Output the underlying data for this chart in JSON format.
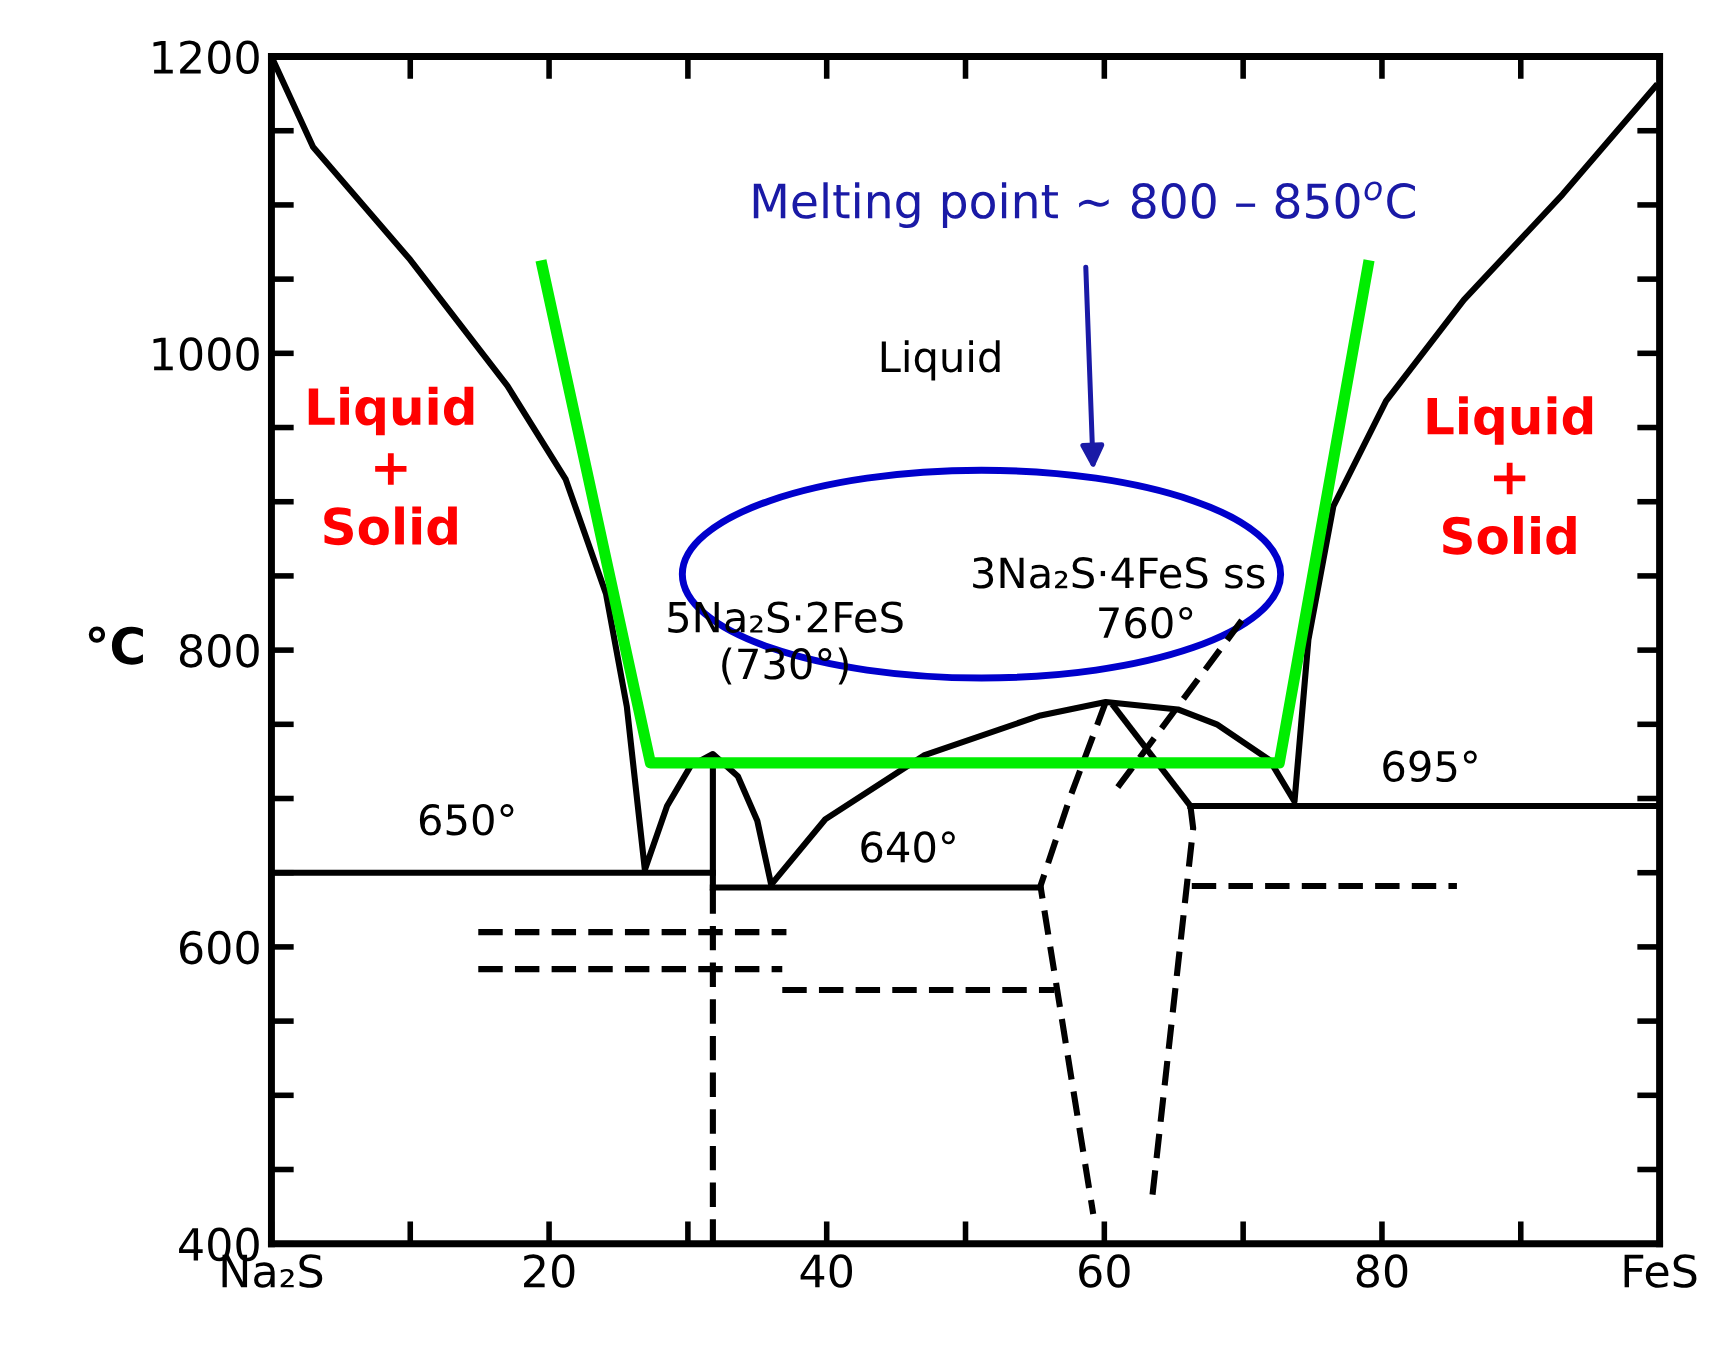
{
  "chart_data": {
    "type": "line",
    "ylabel": "°C",
    "xlim": [
      0,
      100
    ],
    "ylim": [
      400,
      1200
    ],
    "xticks": [
      {
        "value": 0,
        "label": "Na₂S"
      },
      {
        "value": 10,
        "label": null
      },
      20,
      {
        "value": 30,
        "label": null
      },
      40,
      {
        "value": 50,
        "label": null
      },
      60,
      {
        "value": 70,
        "label": null
      },
      80,
      {
        "value": 90,
        "label": null
      },
      {
        "value": 100,
        "label": "FeS"
      }
    ],
    "yticks": [
      400,
      {
        "value": 450,
        "label": null
      },
      {
        "value": 500,
        "label": null
      },
      {
        "value": 550,
        "label": null
      },
      600,
      {
        "value": 650,
        "label": null
      },
      {
        "value": 700,
        "label": null
      },
      {
        "value": 750,
        "label": null
      },
      800,
      {
        "value": 850,
        "label": null
      },
      {
        "value": 900,
        "label": null
      },
      {
        "value": 950,
        "label": null
      },
      1000,
      {
        "value": 1050,
        "label": null
      },
      {
        "value": 1100,
        "label": null
      },
      {
        "value": 1150,
        "label": null
      },
      1200
    ],
    "grid": false,
    "marker": "none",
    "series": [
      {
        "color": "#000000",
        "line_style": "solid",
        "x": [
          0,
          3,
          10,
          17,
          21.2,
          24.1,
          25.6,
          26.9,
          28.5,
          30.2,
          31.8,
          33.6,
          35,
          36,
          39.9,
          47,
          55.4,
          60.1,
          65.3,
          68.1,
          71.9,
          73.7,
          74.7,
          76.5,
          80.3,
          85.9,
          93,
          99.7
        ],
        "values": [
          1200,
          1139,
          1063,
          978,
          915,
          838,
          762,
          652,
          695,
          722,
          730,
          715,
          685,
          642,
          686,
          729,
          756,
          765,
          760,
          750,
          726,
          698,
          807,
          897,
          968,
          1036,
          1107,
          1180
        ]
      },
      {
        "color": "#000000",
        "line_style": "solid",
        "x": [
          0,
          31.8
        ],
        "values": [
          650,
          650
        ]
      },
      {
        "color": "#000000",
        "line_style": "solid",
        "x": [
          31.8,
          31.8
        ],
        "values": [
          640,
          728
        ]
      },
      {
        "color": "#000000",
        "line_style": "solid",
        "x": [
          31.8,
          55.4
        ],
        "values": [
          640,
          640
        ]
      },
      {
        "color": "#000000",
        "line_style": "dashed",
        "x": [
          31.8,
          31.8
        ],
        "values": [
          400,
          640
        ]
      },
      {
        "color": "#000000",
        "line_style": "solid",
        "x": [
          66.2,
          100
        ],
        "values": [
          695,
          695
        ]
      },
      {
        "color": "#000000",
        "line_style": "solid",
        "x": [
          60.7,
          66.2
        ],
        "values": [
          762,
          695
        ]
      },
      {
        "color": "#000000",
        "line_style": "dashed",
        "x": [
          66.2,
          66.4,
          63.4
        ],
        "values": [
          695,
          680,
          427
        ]
      },
      {
        "color": "#000000",
        "line_style": "dashed",
        "x": [
          60.1,
          57.5,
          55.4,
          59.2
        ],
        "values": [
          765,
          700,
          641,
          420
        ]
      },
      {
        "color": "#000000",
        "line_style": "dashed",
        "x": [
          69.9,
          60.6
        ],
        "values": [
          820,
          703
        ]
      },
      {
        "color": "#000000",
        "line_style": "dashed",
        "x": [
          14.9,
          37.1
        ],
        "values": [
          610,
          610
        ]
      },
      {
        "color": "#000000",
        "line_style": "dashed",
        "x": [
          14.9,
          36.8
        ],
        "values": [
          585,
          585
        ]
      },
      {
        "color": "#000000",
        "line_style": "dashed",
        "x": [
          36.8,
          56.4
        ],
        "values": [
          571,
          571
        ]
      },
      {
        "color": "#000000",
        "line_style": "dashed",
        "x": [
          66.3,
          85.4
        ],
        "values": [
          641,
          641
        ]
      },
      {
        "color": "#00ee00",
        "line_style": "solid",
        "x": [
          19.5,
          27.3,
          72.6,
          79
        ],
        "values": [
          1059,
          724,
          724,
          1059
        ]
      }
    ],
    "annotations": [
      "Melting point ~ 800 – 850$^{o}$C",
      "Liquid",
      "Liquid\n+\nSolid",
      "Liquid\n+\nSolid",
      "5Na₂S·2FeS\n(730°)",
      "3Na₂S·4FeS ss",
      "760°",
      "650°",
      "640°",
      "695°"
    ]
  }
}
